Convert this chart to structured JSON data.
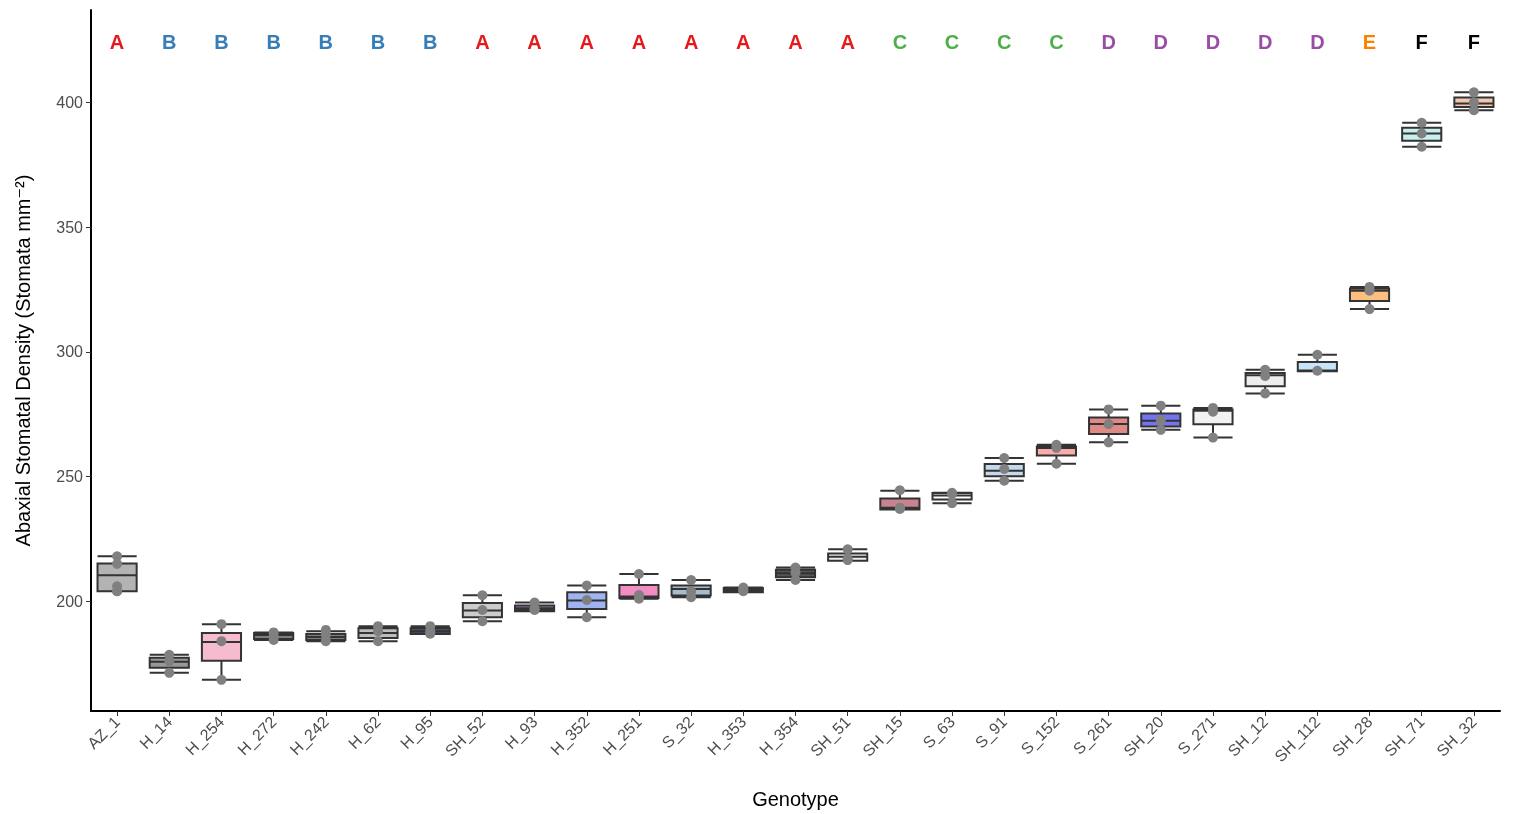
{
  "chart_data": {
    "type": "box",
    "xlabel": "Genotype",
    "ylabel": "Abaxial Stomatal Density (Stomata mm⁻²)",
    "categories": [
      "AZ_1",
      "H_14",
      "H_254",
      "H_272",
      "H_242",
      "H_62",
      "H_95",
      "SH_52",
      "H_93",
      "H_352",
      "H_251",
      "S_32",
      "H_353",
      "H_354",
      "SH_51",
      "SH_15",
      "S_63",
      "S_91",
      "S_152",
      "S_261",
      "SH_20",
      "S_271",
      "SH_12",
      "SH_112",
      "SH_28",
      "SH_71",
      "SH_32"
    ],
    "ylim": [
      156,
      437
    ],
    "yticks": [
      200,
      250,
      300,
      350,
      400
    ],
    "grid": false,
    "series": [
      {
        "type": "box",
        "colors": [
          "#b3b3b3",
          "#999999",
          "#f7bbd0",
          "#7f7f7f",
          "#808080",
          "#bdbdbd",
          "#4a5a7a",
          "#cccccc",
          "#a07ab0",
          "#9fb4f0",
          "#f48cc4",
          "#a9bccb",
          "#666666",
          "#555555",
          "#eeeeee",
          "#c9828f",
          "#ffffff",
          "#c6d9ec",
          "#f9aaaa",
          "#e08a86",
          "#7474f0",
          "#f2f2f2",
          "#eeeeee",
          "#c5e6f8",
          "#fdbf7f",
          "#c8eeee",
          "#f2c6b0"
        ],
        "boxes": [
          {
            "low": 204,
            "q1": 204,
            "median": 210.4,
            "q3": 215.1,
            "high": 218
          },
          {
            "low": 171.3,
            "q1": 173.3,
            "median": 175.7,
            "q3": 177.3,
            "high": 178.5
          },
          {
            "low": 168.5,
            "q1": 176.1,
            "median": 183.7,
            "q3": 187.3,
            "high": 190.8
          },
          {
            "low": 184.5,
            "q1": 184.9,
            "median": 186.5,
            "q3": 187.3,
            "high": 187.5
          },
          {
            "low": 184,
            "q1": 184.5,
            "median": 185.7,
            "q3": 186.9,
            "high": 188
          },
          {
            "low": 184,
            "q1": 185.3,
            "median": 187.3,
            "q3": 189.2,
            "high": 190
          },
          {
            "low": 187,
            "q1": 186.9,
            "median": 188,
            "q3": 189.2,
            "high": 190
          },
          {
            "low": 192,
            "q1": 193.6,
            "median": 196.3,
            "q3": 199.3,
            "high": 202.4
          },
          {
            "low": 196.5,
            "q1": 196,
            "median": 197.2,
            "q3": 198.3,
            "high": 199.5
          },
          {
            "low": 193.6,
            "q1": 196.9,
            "median": 200.3,
            "q3": 203.6,
            "high": 206.3
          },
          {
            "low": 201,
            "q1": 201.3,
            "median": 201.9,
            "q3": 206.5,
            "high": 210.9
          },
          {
            "low": 201.6,
            "q1": 202.3,
            "median": 204.9,
            "q3": 206.3,
            "high": 208.5
          },
          {
            "low": 204,
            "q1": 203.6,
            "median": 204.5,
            "q3": 205.3,
            "high": 205.5
          },
          {
            "low": 208.5,
            "q1": 209.6,
            "median": 211.2,
            "q3": 212.6,
            "high": 213.5
          },
          {
            "low": 216.2,
            "q1": 216.2,
            "median": 217.8,
            "q3": 219.1,
            "high": 220.8
          },
          {
            "low": 236.8,
            "q1": 236.8,
            "median": 237.5,
            "q3": 241.2,
            "high": 244.3
          },
          {
            "low": 239.3,
            "q1": 240.8,
            "median": 242.4,
            "q3": 243.4,
            "high": 243.5
          },
          {
            "low": 248.3,
            "q1": 250.1,
            "median": 252.3,
            "q3": 255,
            "high": 257.4
          },
          {
            "low": 255.1,
            "q1": 258.4,
            "median": 261.4,
            "q3": 262,
            "high": 262.7
          },
          {
            "low": 263.7,
            "q1": 267,
            "median": 271,
            "q3": 273.7,
            "high": 276.9
          },
          {
            "low": 268.7,
            "q1": 270,
            "median": 272.3,
            "q3": 275.3,
            "high": 278.4
          },
          {
            "low": 265.6,
            "q1": 270.9,
            "median": 276.4,
            "q3": 276.9,
            "high": 277.5
          },
          {
            "low": 283.3,
            "q1": 286.2,
            "median": 290.6,
            "q3": 291.5,
            "high": 292.8
          },
          {
            "low": 292.2,
            "q1": 292.2,
            "median": 292.5,
            "q3": 295.9,
            "high": 298.8
          },
          {
            "low": 317.1,
            "q1": 320.4,
            "median": 324.5,
            "q3": 325.4,
            "high": 326
          },
          {
            "low": 382.2,
            "q1": 384.6,
            "median": 387.5,
            "q3": 389.8,
            "high": 391.8
          },
          {
            "low": 396.8,
            "q1": 398.1,
            "median": 399.5,
            "q3": 401.9,
            "high": 404
          }
        ]
      },
      {
        "type": "scatter",
        "color": "#808080",
        "marker": "circle",
        "x": [
          "AZ_1",
          "AZ_1",
          "AZ_1",
          "AZ_1",
          "AZ_1",
          "H_14",
          "H_14",
          "H_14",
          "H_254",
          "H_254",
          "H_254",
          "H_272",
          "H_272",
          "H_272",
          "H_242",
          "H_242",
          "H_242",
          "H_62",
          "H_62",
          "H_62",
          "H_95",
          "H_95",
          "H_95",
          "SH_52",
          "SH_52",
          "SH_52",
          "H_93",
          "H_93",
          "H_93",
          "H_352",
          "H_352",
          "H_352",
          "H_251",
          "H_251",
          "H_251",
          "S_32",
          "S_32",
          "S_32",
          "H_353",
          "H_353",
          "H_353",
          "H_354",
          "H_354",
          "H_354",
          "SH_51",
          "SH_51",
          "SH_51",
          "SH_15",
          "SH_15",
          "SH_15",
          "S_63",
          "S_63",
          "S_63",
          "S_91",
          "S_91",
          "S_91",
          "S_152",
          "S_152",
          "S_152",
          "S_261",
          "S_261",
          "S_261",
          "SH_20",
          "SH_20",
          "SH_20",
          "S_271",
          "S_271",
          "S_271",
          "SH_12",
          "SH_12",
          "SH_12",
          "SH_112",
          "SH_112",
          "SH_28",
          "SH_28",
          "SH_28",
          "SH_71",
          "SH_71",
          "SH_71",
          "SH_32",
          "SH_32",
          "SH_32"
        ],
        "values": [
          218,
          215,
          206,
          204,
          204,
          178.5,
          176,
          171.3,
          190.8,
          184,
          168.5,
          187.5,
          186,
          184.5,
          188.5,
          186.5,
          184,
          190,
          188,
          184,
          190,
          188,
          187,
          202.4,
          196.5,
          192,
          199.5,
          197,
          196.5,
          206.3,
          200.5,
          193.6,
          210.9,
          202.5,
          201,
          208.5,
          204,
          201.6,
          205.5,
          204.5,
          204,
          213.5,
          211.5,
          208.5,
          220.8,
          217,
          216.5,
          244.5,
          237.5,
          237,
          243.5,
          243,
          239.3,
          257.4,
          253,
          248.3,
          262.7,
          261.5,
          255.1,
          276.9,
          271,
          263.7,
          278.4,
          272.5,
          268.7,
          277.5,
          276,
          265.6,
          292.8,
          290.3,
          283.3,
          298.8,
          292.4,
          326,
          324.5,
          317.1,
          391.8,
          387.5,
          382.2,
          404,
          400,
          396.8
        ]
      }
    ],
    "annotations": [
      "A",
      "B",
      "B",
      "B",
      "B",
      "B",
      "B",
      "A",
      "A",
      "A",
      "A",
      "A",
      "A",
      "A",
      "A",
      "C",
      "C",
      "C",
      "C",
      "D",
      "D",
      "D",
      "D",
      "D",
      "E",
      "F",
      "F"
    ]
  }
}
